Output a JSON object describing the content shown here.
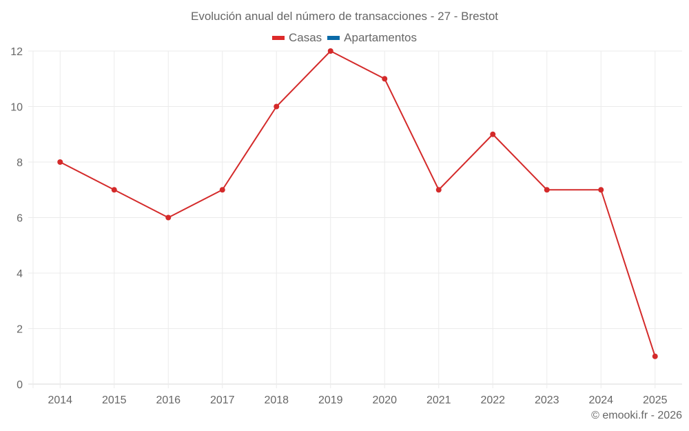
{
  "title": "Evolución anual del número de transacciones - 27 - Brestot",
  "legend": [
    {
      "label": "Casas",
      "color": "#dd2a2a"
    },
    {
      "label": "Apartamentos",
      "color": "#0a6aa8"
    }
  ],
  "credit": "© emooki.fr - 2026",
  "colors": {
    "grid": "#ebebeb",
    "axis": "#d8d8d8",
    "line": "#d42a2a",
    "text": "#666666"
  },
  "chart_data": {
    "type": "line",
    "title": "Evolución anual del número de transacciones - 27 - Brestot",
    "xlabel": "",
    "ylabel": "",
    "categories": [
      "2014",
      "2015",
      "2016",
      "2017",
      "2018",
      "2019",
      "2020",
      "2021",
      "2022",
      "2023",
      "2024",
      "2025"
    ],
    "series": [
      {
        "name": "Casas",
        "color": "#dd2a2a",
        "values": [
          8,
          7,
          6,
          7,
          10,
          12,
          11,
          7,
          9,
          7,
          7,
          1
        ]
      },
      {
        "name": "Apartamentos",
        "color": "#0a6aa8",
        "values": []
      }
    ],
    "yticks": [
      0,
      2,
      4,
      6,
      8,
      10,
      12
    ],
    "ylim": [
      0,
      12
    ],
    "grid": true,
    "legend_position": "top"
  }
}
